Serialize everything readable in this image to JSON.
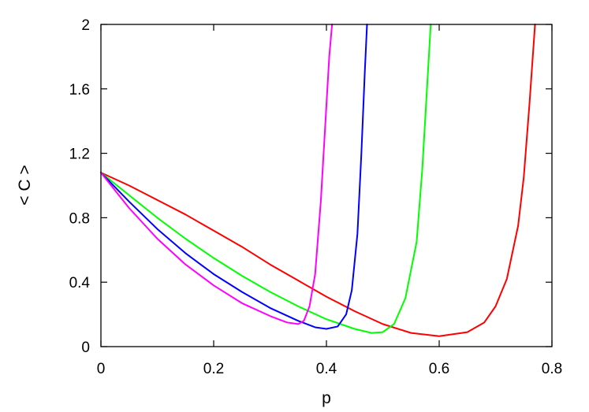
{
  "chart_data": {
    "type": "line",
    "title": "",
    "xlabel": "p",
    "ylabel": "< C >",
    "xlim": [
      0,
      0.8
    ],
    "ylim": [
      0,
      2
    ],
    "x_ticks": [
      0,
      0.2,
      0.4,
      0.6,
      0.8
    ],
    "x_tick_labels": [
      "0",
      "0.2",
      "0.4",
      "0.6",
      "0.8"
    ],
    "y_ticks": [
      0,
      0.4,
      0.8,
      1.2,
      1.6,
      2
    ],
    "y_tick_labels": [
      "0",
      "0.4",
      "0.8",
      "1.2",
      "1.6",
      "2"
    ],
    "grid": false,
    "legend": "none",
    "series": [
      {
        "color": "#ff0000",
        "points": [
          [
            0,
            1.08
          ],
          [
            0.05,
            1.0
          ],
          [
            0.1,
            0.91
          ],
          [
            0.15,
            0.82
          ],
          [
            0.2,
            0.72
          ],
          [
            0.25,
            0.62
          ],
          [
            0.3,
            0.51
          ],
          [
            0.35,
            0.41
          ],
          [
            0.4,
            0.31
          ],
          [
            0.45,
            0.22
          ],
          [
            0.5,
            0.14
          ],
          [
            0.55,
            0.085
          ],
          [
            0.6,
            0.065
          ],
          [
            0.65,
            0.09
          ],
          [
            0.68,
            0.15
          ],
          [
            0.7,
            0.25
          ],
          [
            0.72,
            0.42
          ],
          [
            0.74,
            0.75
          ],
          [
            0.75,
            1.05
          ],
          [
            0.76,
            1.5
          ],
          [
            0.77,
            2.0
          ]
        ]
      },
      {
        "color": "#00ff00",
        "points": [
          [
            0,
            1.08
          ],
          [
            0.05,
            0.94
          ],
          [
            0.1,
            0.8
          ],
          [
            0.15,
            0.67
          ],
          [
            0.2,
            0.55
          ],
          [
            0.25,
            0.44
          ],
          [
            0.3,
            0.34
          ],
          [
            0.35,
            0.25
          ],
          [
            0.4,
            0.17
          ],
          [
            0.45,
            0.11
          ],
          [
            0.48,
            0.085
          ],
          [
            0.5,
            0.09
          ],
          [
            0.52,
            0.14
          ],
          [
            0.54,
            0.3
          ],
          [
            0.56,
            0.65
          ],
          [
            0.57,
            1.1
          ],
          [
            0.58,
            1.7
          ],
          [
            0.585,
            2.0
          ]
        ]
      },
      {
        "color": "#0000ff",
        "points": [
          [
            0,
            1.08
          ],
          [
            0.05,
            0.9
          ],
          [
            0.1,
            0.73
          ],
          [
            0.15,
            0.58
          ],
          [
            0.2,
            0.45
          ],
          [
            0.25,
            0.34
          ],
          [
            0.3,
            0.24
          ],
          [
            0.35,
            0.16
          ],
          [
            0.38,
            0.12
          ],
          [
            0.4,
            0.11
          ],
          [
            0.42,
            0.125
          ],
          [
            0.435,
            0.2
          ],
          [
            0.445,
            0.35
          ],
          [
            0.455,
            0.7
          ],
          [
            0.462,
            1.2
          ],
          [
            0.468,
            1.7
          ],
          [
            0.472,
            2.0
          ]
        ]
      },
      {
        "color": "#ff00ff",
        "points": [
          [
            0,
            1.08
          ],
          [
            0.05,
            0.86
          ],
          [
            0.1,
            0.67
          ],
          [
            0.15,
            0.51
          ],
          [
            0.2,
            0.38
          ],
          [
            0.25,
            0.27
          ],
          [
            0.3,
            0.19
          ],
          [
            0.33,
            0.15
          ],
          [
            0.35,
            0.14
          ],
          [
            0.36,
            0.16
          ],
          [
            0.37,
            0.25
          ],
          [
            0.38,
            0.45
          ],
          [
            0.39,
            0.9
          ],
          [
            0.4,
            1.5
          ],
          [
            0.405,
            1.8
          ],
          [
            0.41,
            2.0
          ]
        ]
      }
    ]
  }
}
